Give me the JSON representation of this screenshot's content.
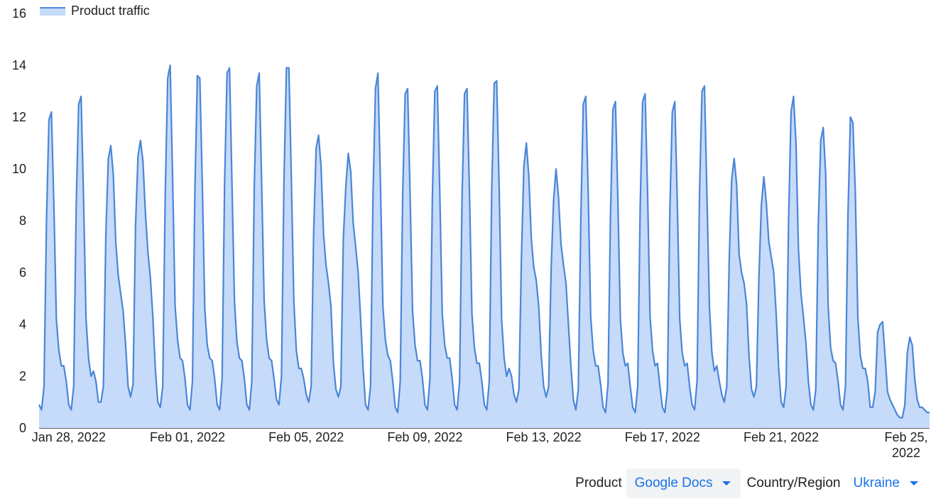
{
  "chart_data": {
    "type": "area",
    "legend": {
      "label": "Product traffic",
      "placement": "top-left"
    },
    "ylim": [
      0,
      16
    ],
    "yticks": [
      "0",
      "2",
      "4",
      "6",
      "8",
      "10",
      "12",
      "14",
      "16"
    ],
    "x_start": "Jan 27, 2022",
    "x_end": "Feb 25, 2022",
    "xticks": [
      {
        "day": 1,
        "label": "Jan 28, 2022"
      },
      {
        "day": 5,
        "label": "Feb 01, 2022"
      },
      {
        "day": 9,
        "label": "Feb 05, 2022"
      },
      {
        "day": 13,
        "label": "Feb 09, 2022"
      },
      {
        "day": 17,
        "label": "Feb 13, 2022"
      },
      {
        "day": 21,
        "label": "Feb 17, 2022"
      },
      {
        "day": 25,
        "label": "Feb 21, 2022"
      },
      {
        "day": 29,
        "label": "Feb 25, 2022"
      }
    ],
    "grid": false,
    "series": [
      {
        "name": "Product traffic",
        "color": "#4a86d6",
        "fill": "#c6dafa",
        "points_per_day": 12,
        "values": [
          0.9,
          0.7,
          1.6,
          8.0,
          11.9,
          12.2,
          8.6,
          4.2,
          3.0,
          2.4,
          2.4,
          1.8,
          0.9,
          0.7,
          1.6,
          8.5,
          12.5,
          12.8,
          8.8,
          4.2,
          2.7,
          2.0,
          2.2,
          1.8,
          1.0,
          1.0,
          1.6,
          7.5,
          10.4,
          10.9,
          9.8,
          7.2,
          5.9,
          5.2,
          4.5,
          3.2,
          1.6,
          1.2,
          1.7,
          7.8,
          10.5,
          11.1,
          10.3,
          8.3,
          6.8,
          5.8,
          4.3,
          2.3,
          1.0,
          0.8,
          1.6,
          9.0,
          13.5,
          14.0,
          9.6,
          4.7,
          3.4,
          2.7,
          2.6,
          1.9,
          0.9,
          0.7,
          1.8,
          9.2,
          13.6,
          13.5,
          9.4,
          4.6,
          3.2,
          2.7,
          2.6,
          1.9,
          0.9,
          0.7,
          1.9,
          9.4,
          13.7,
          13.9,
          9.4,
          4.9,
          3.3,
          2.7,
          2.6,
          1.9,
          0.9,
          0.7,
          1.8,
          9.3,
          13.2,
          13.7,
          9.4,
          4.9,
          3.4,
          2.7,
          2.6,
          1.9,
          1.1,
          0.9,
          2.0,
          9.5,
          13.9,
          13.9,
          9.6,
          4.9,
          3.0,
          2.3,
          2.3,
          1.9,
          1.3,
          1.0,
          1.6,
          7.5,
          10.8,
          11.3,
          10.1,
          7.5,
          6.3,
          5.6,
          4.7,
          2.5,
          1.5,
          1.2,
          1.6,
          7.3,
          9.3,
          10.6,
          9.9,
          7.9,
          7.0,
          6.0,
          4.2,
          2.3,
          0.9,
          0.7,
          1.6,
          9.0,
          13.1,
          13.7,
          9.5,
          4.7,
          3.4,
          2.8,
          2.6,
          1.8,
          0.8,
          0.6,
          1.8,
          9.0,
          12.9,
          13.1,
          9.0,
          4.5,
          3.2,
          2.6,
          2.6,
          1.9,
          0.9,
          0.7,
          1.9,
          8.9,
          13.0,
          13.2,
          9.1,
          4.4,
          3.2,
          2.7,
          2.7,
          1.9,
          0.9,
          0.7,
          1.8,
          8.9,
          12.9,
          13.1,
          9.1,
          4.4,
          3.1,
          2.5,
          2.5,
          1.8,
          0.9,
          0.7,
          1.8,
          9.2,
          13.3,
          13.4,
          9.3,
          4.2,
          2.7,
          2.0,
          2.3,
          2.0,
          1.3,
          1.0,
          1.5,
          6.6,
          10.1,
          11.0,
          9.7,
          7.3,
          6.2,
          5.7,
          4.7,
          2.8,
          1.6,
          1.2,
          1.6,
          6.1,
          8.8,
          10.0,
          8.9,
          7.1,
          6.3,
          5.6,
          4.0,
          2.4,
          1.1,
          0.7,
          1.5,
          8.0,
          12.5,
          12.8,
          9.1,
          4.3,
          3.0,
          2.4,
          2.4,
          1.7,
          0.8,
          0.6,
          1.7,
          8.2,
          12.3,
          12.6,
          8.8,
          4.2,
          2.9,
          2.4,
          2.5,
          1.6,
          0.8,
          0.6,
          1.6,
          8.5,
          12.6,
          12.9,
          9.1,
          4.3,
          3.0,
          2.4,
          2.5,
          1.6,
          0.8,
          0.6,
          1.5,
          8.4,
          12.2,
          12.6,
          8.8,
          4.2,
          2.9,
          2.4,
          2.5,
          1.6,
          0.9,
          0.7,
          1.8,
          9.1,
          13.0,
          13.2,
          9.0,
          4.7,
          2.9,
          2.2,
          2.4,
          1.8,
          1.3,
          1.0,
          1.6,
          6.5,
          9.6,
          10.4,
          9.4,
          6.7,
          6.0,
          5.6,
          4.8,
          2.8,
          1.5,
          1.2,
          1.6,
          5.8,
          8.6,
          9.7,
          8.7,
          7.2,
          6.6,
          6.0,
          4.4,
          2.3,
          1.0,
          0.8,
          1.6,
          8.0,
          12.2,
          12.8,
          11.0,
          6.9,
          5.2,
          4.3,
          3.3,
          1.8,
          0.9,
          0.7,
          1.5,
          7.8,
          11.1,
          11.6,
          9.8,
          4.7,
          3.1,
          2.6,
          2.5,
          1.8,
          0.9,
          0.7,
          1.6,
          8.2,
          12.0,
          11.8,
          9.0,
          4.3,
          2.8,
          2.3,
          2.3,
          1.8,
          0.8,
          0.8,
          1.4,
          3.7,
          4.0,
          4.1,
          2.8,
          1.4,
          1.1,
          0.9,
          0.7,
          0.5,
          0.4,
          0.4,
          0.9,
          2.9,
          3.5,
          3.2,
          1.9,
          1.1,
          0.8,
          0.8,
          0.7,
          0.6,
          0.6
        ]
      }
    ]
  },
  "controls": {
    "product_label": "Product",
    "product_value": "Google Docs",
    "region_label": "Country/Region",
    "region_value": "Ukraine",
    "accent": "#1a73e8"
  }
}
